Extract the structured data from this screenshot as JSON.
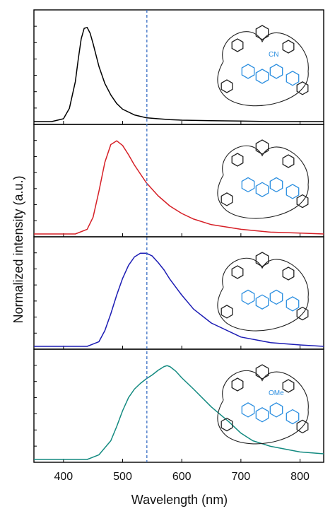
{
  "chart_data": {
    "type": "line",
    "xlabel": "Wavelength (nm)",
    "ylabel": "Normalized intensity (a.u.)",
    "xlim": [
      350,
      840
    ],
    "x_ticks": [
      400,
      500,
      600,
      700,
      800
    ],
    "ylim": [
      0,
      1.1
    ],
    "grid": false,
    "reference_line": {
      "x": 541,
      "color": "#3a6fc4",
      "style": "dashed"
    },
    "panels": [
      {
        "color": "#000000",
        "molecule_note": "CN",
        "series": [
          {
            "x": [
              350,
              380,
              400,
              410,
              420,
              425,
              430,
              435,
              440,
              445,
              450,
              460,
              470,
              480,
              490,
              500,
              520,
              540,
              560,
              580,
              600,
              650,
              700,
              750,
              800,
              840
            ],
            "y": [
              0.0,
              0.0,
              0.03,
              0.14,
              0.42,
              0.66,
              0.87,
              0.98,
              0.99,
              0.93,
              0.82,
              0.58,
              0.4,
              0.28,
              0.19,
              0.13,
              0.07,
              0.04,
              0.03,
              0.02,
              0.015,
              0.01,
              0.005,
              0.0,
              0.0,
              0.0
            ]
          }
        ]
      },
      {
        "color": "#d62027",
        "molecule_note": "",
        "series": [
          {
            "x": [
              350,
              420,
              440,
              450,
              460,
              470,
              480,
              490,
              500,
              510,
              520,
              540,
              560,
              580,
              600,
              620,
              650,
              700,
              750,
              800,
              840
            ],
            "y": [
              0.0,
              0.0,
              0.05,
              0.18,
              0.46,
              0.77,
              0.96,
              1.0,
              0.95,
              0.85,
              0.74,
              0.55,
              0.41,
              0.3,
              0.22,
              0.16,
              0.1,
              0.05,
              0.02,
              0.01,
              0.0
            ]
          }
        ]
      },
      {
        "color": "#1c1cb4",
        "molecule_note": "",
        "series": [
          {
            "x": [
              350,
              440,
              460,
              470,
              480,
              490,
              500,
              510,
              520,
              530,
              540,
              550,
              560,
              570,
              580,
              600,
              620,
              650,
              700,
              750,
              800,
              840
            ],
            "y": [
              0.0,
              0.0,
              0.05,
              0.17,
              0.35,
              0.55,
              0.73,
              0.87,
              0.96,
              1.0,
              1.0,
              0.97,
              0.9,
              0.82,
              0.72,
              0.55,
              0.4,
              0.25,
              0.1,
              0.04,
              0.015,
              0.0
            ]
          }
        ]
      },
      {
        "color": "#138a80",
        "molecule_note": "OMe",
        "series": [
          {
            "x": [
              350,
              440,
              460,
              480,
              490,
              500,
              510,
              520,
              530,
              540,
              550,
              560,
              570,
              575,
              580,
              590,
              600,
              620,
              650,
              680,
              700,
              720,
              750,
              800,
              840
            ],
            "y": [
              0.0,
              0.0,
              0.05,
              0.2,
              0.35,
              0.52,
              0.66,
              0.75,
              0.81,
              0.86,
              0.9,
              0.95,
              0.99,
              1.0,
              0.99,
              0.94,
              0.87,
              0.75,
              0.56,
              0.4,
              0.28,
              0.2,
              0.14,
              0.08,
              0.06
            ]
          }
        ]
      }
    ]
  }
}
